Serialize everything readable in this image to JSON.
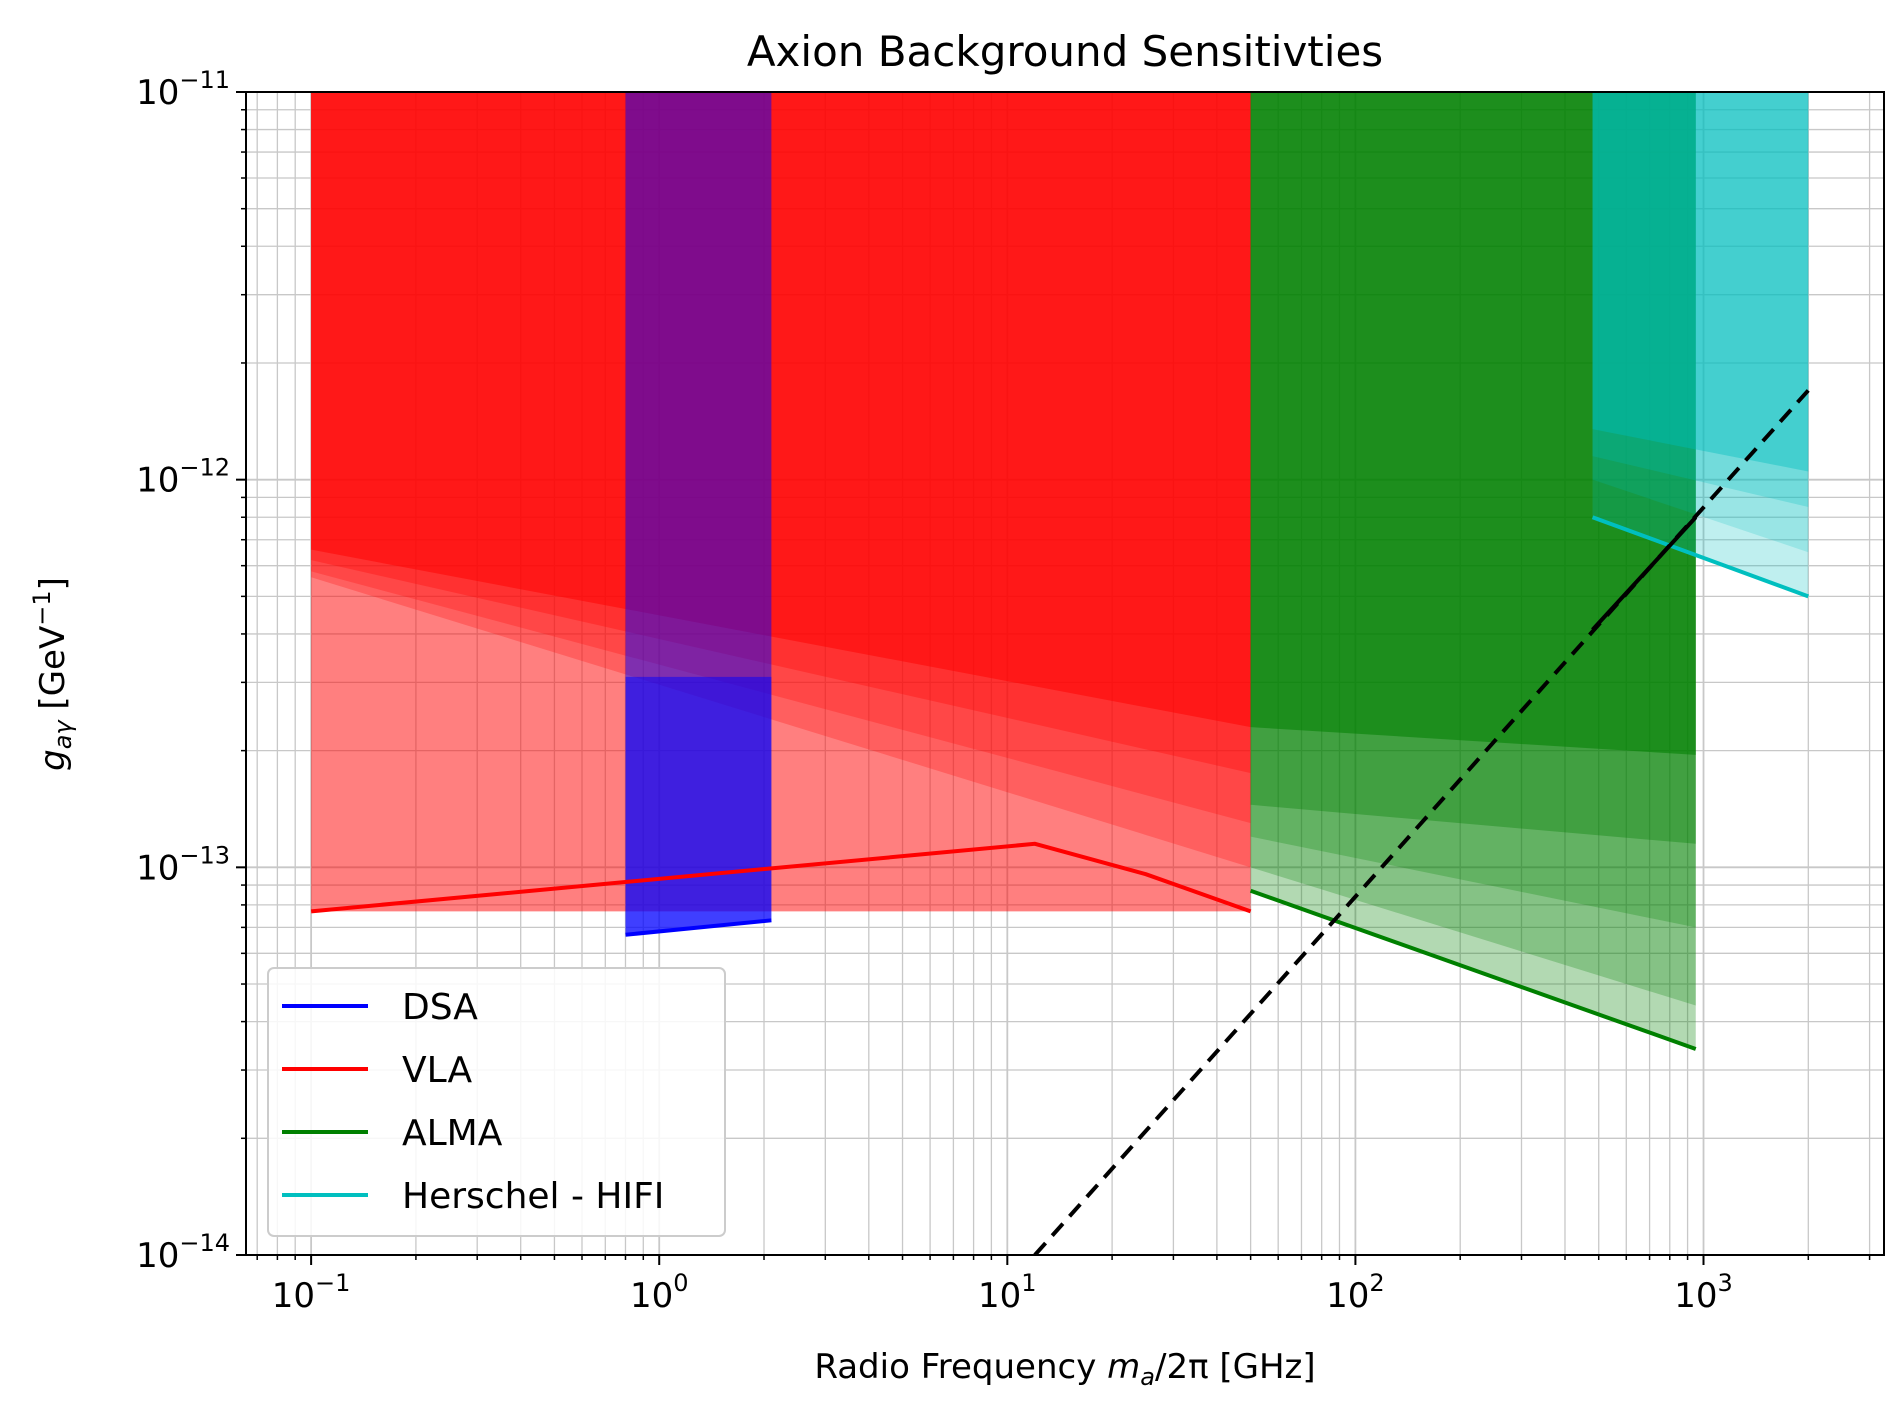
{
  "chart_data": {
    "type": "area",
    "title": "Axion Background Sensitivties",
    "xlabel": {
      "pre": "Radio Frequency ",
      "it1": "m",
      "sub": "a",
      "post": "/2π [GHz]"
    },
    "ylabel": {
      "it": "g",
      "sub": "aγ",
      "post": " [GeV",
      "sup": "−1",
      "end": "]"
    },
    "x_scale": "log",
    "y_scale": "log",
    "xlim": [
      0.065,
      3300
    ],
    "ylim": [
      1e-14,
      1e-11
    ],
    "x_ticks": [
      {
        "value": 0.1,
        "base": "10",
        "exp": "−1"
      },
      {
        "value": 1,
        "base": "10",
        "exp": "0"
      },
      {
        "value": 10,
        "base": "10",
        "exp": "1"
      },
      {
        "value": 100,
        "base": "10",
        "exp": "2"
      },
      {
        "value": 1000,
        "base": "10",
        "exp": "3"
      }
    ],
    "y_ticks": [
      {
        "value": 1e-14,
        "base": "10",
        "exp": "−14"
      },
      {
        "value": 1e-13,
        "base": "10",
        "exp": "−13"
      },
      {
        "value": 1e-12,
        "base": "10",
        "exp": "−12"
      },
      {
        "value": 1e-11,
        "base": "10",
        "exp": "−11"
      }
    ],
    "grid": "major and minor",
    "legend": {
      "placement": "bottom-left",
      "entries": [
        {
          "label": "DSA",
          "color": "#0000ff"
        },
        {
          "label": "VLA",
          "color": "#ff0000"
        },
        {
          "label": "ALMA",
          "color": "#008000"
        },
        {
          "label": "Herschel - HIFI",
          "color": "#00bfbf"
        }
      ]
    },
    "series": [
      {
        "key": "VLA",
        "color": "#ff0000",
        "bands": [
          {
            "x": [
              0.1,
              50
            ],
            "lower": [
              6.6e-13,
              2.3e-13
            ],
            "upper": [
              1e-11,
              1e-11
            ],
            "opacity": 0.5
          },
          {
            "x": [
              0.1,
              50
            ],
            "lower": [
              6.2e-13,
              1.75e-13
            ],
            "upper": [
              1e-11,
              1e-11
            ],
            "opacity": 0.3
          },
          {
            "x": [
              0.1,
              50
            ],
            "lower": [
              5.8e-13,
              1.3e-13
            ],
            "upper": [
              1e-11,
              1e-11
            ],
            "opacity": 0.25
          },
          {
            "x": [
              0.1,
              50
            ],
            "lower": [
              5.6e-13,
              1e-13
            ],
            "upper": [
              1e-11,
              1e-11
            ],
            "opacity": 0.25
          },
          {
            "x": [
              0.1,
              50
            ],
            "lower": [
              7.7e-14,
              7.7e-14
            ],
            "upper": [
              1e-11,
              1e-11
            ],
            "opacity": 0.5
          }
        ],
        "line": {
          "x": [
            0.1,
            12,
            25,
            50
          ],
          "y": [
            7.7e-14,
            1.15e-13,
            9.6e-14,
            7.7e-14
          ]
        }
      },
      {
        "key": "DSA",
        "color": "#0000ff",
        "bands": [
          {
            "x": [
              0.8,
              2.1
            ],
            "lower": [
              6.7e-14,
              7.3e-14
            ],
            "upper": [
              3.1e-13,
              3.1e-13
            ],
            "opacity": 0.5
          },
          {
            "x": [
              0.8,
              2.1
            ],
            "lower": [
              6.7e-14,
              7.3e-14
            ],
            "upper": [
              1e-11,
              1e-11
            ],
            "opacity": 0.5
          }
        ],
        "line": {
          "x": [
            0.8,
            2.1
          ],
          "y": [
            6.7e-14,
            7.3e-14
          ]
        }
      },
      {
        "key": "ALMA",
        "color": "#008000",
        "bands": [
          {
            "x": [
              50,
              950
            ],
            "lower": [
              2.3e-13,
              1.95e-13
            ],
            "upper": [
              1e-11,
              1e-11
            ],
            "opacity": 0.55
          },
          {
            "x": [
              50,
              950
            ],
            "lower": [
              1.45e-13,
              1.15e-13
            ],
            "upper": [
              1e-11,
              1e-11
            ],
            "opacity": 0.35
          },
          {
            "x": [
              50,
              950
            ],
            "lower": [
              1.2e-13,
              7e-14
            ],
            "upper": [
              1e-11,
              1e-11
            ],
            "opacity": 0.25
          },
          {
            "x": [
              50,
              950
            ],
            "lower": [
              1e-13,
              4.4e-14
            ],
            "upper": [
              1e-11,
              1e-11
            ],
            "opacity": 0.25
          },
          {
            "x": [
              50,
              950
            ],
            "lower": [
              8.7e-14,
              3.4e-14
            ],
            "upper": [
              1e-11,
              1e-11
            ],
            "opacity": 0.3
          }
        ],
        "line": {
          "x": [
            50,
            950
          ],
          "y": [
            8.7e-14,
            3.4e-14
          ]
        }
      },
      {
        "key": "Herschel - HIFI",
        "color": "#00bfbf",
        "bands": [
          {
            "x": [
              480,
              2000
            ],
            "lower": [
              1.35e-12,
              1.05e-12
            ],
            "upper": [
              1e-11,
              1e-11
            ],
            "opacity": 0.4
          },
          {
            "x": [
              480,
              2000
            ],
            "lower": [
              1.15e-12,
              8.5e-13
            ],
            "upper": [
              1e-11,
              1e-11
            ],
            "opacity": 0.25
          },
          {
            "x": [
              480,
              2000
            ],
            "lower": [
              1e-12,
              6.5e-13
            ],
            "upper": [
              1e-11,
              1e-11
            ],
            "opacity": 0.2
          },
          {
            "x": [
              480,
              2000
            ],
            "lower": [
              8e-13,
              5e-13
            ],
            "upper": [
              1e-11,
              1e-11
            ],
            "opacity": 0.25
          }
        ],
        "line": {
          "x": [
            480,
            2000
          ],
          "y": [
            8e-13,
            5e-13
          ]
        }
      }
    ],
    "reference_line": {
      "color": "#000000",
      "style": "dashed",
      "x": [
        12,
        2000
      ],
      "y": [
        1e-14,
        1.7e-12
      ],
      "solid_segment": {
        "x": [
          480,
          950
        ],
        "y": [
          4.1e-13,
          8e-13
        ]
      }
    }
  }
}
